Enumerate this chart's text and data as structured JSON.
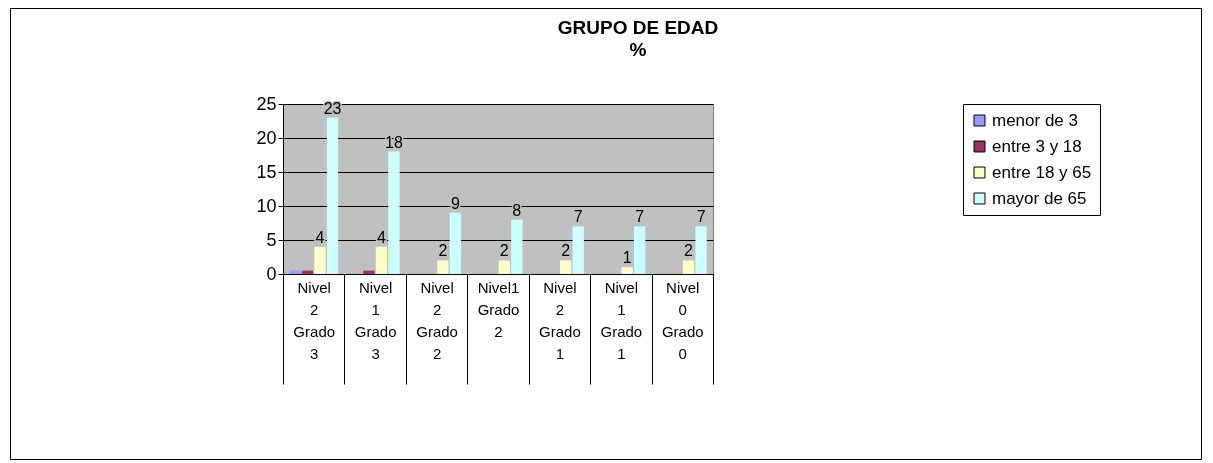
{
  "chart_data": {
    "type": "bar",
    "title": "GRUPO DE EDAD",
    "subtitle": "%",
    "categories": [
      "Nivel 2 Grado 3",
      "Nivel 1 Grado 3",
      "Nivel 2 Grado 2",
      "Nivel1 Grado 2",
      "Nivel 2 Grado 1",
      "Nivel 1 Grado 1",
      "Nivel 0 Grado 0"
    ],
    "series": [
      {
        "name": "menor de 3",
        "color": "#9999ff",
        "values": [
          0.5,
          0,
          0,
          0,
          0,
          0,
          0
        ]
      },
      {
        "name": "entre 3 y 18",
        "color": "#993366",
        "values": [
          0.5,
          0.5,
          0,
          0,
          0,
          0,
          0
        ]
      },
      {
        "name": "entre 18 y 65",
        "color": "#ffffcc",
        "values": [
          4,
          4,
          2,
          2,
          2,
          1,
          2
        ],
        "value_labels": [
          "4",
          "4",
          "2",
          "2",
          "2",
          "1",
          "2"
        ]
      },
      {
        "name": "mayor de 65",
        "color": "#ccffff",
        "values": [
          23,
          18,
          9,
          8,
          7,
          7,
          7
        ],
        "value_labels": [
          "23",
          "18",
          "9",
          "8",
          "7",
          "7",
          "7"
        ]
      }
    ],
    "ylim": [
      0,
      25
    ],
    "yticks": [
      0,
      5,
      10,
      15,
      20,
      25
    ],
    "grid": "y",
    "legend": "right"
  }
}
